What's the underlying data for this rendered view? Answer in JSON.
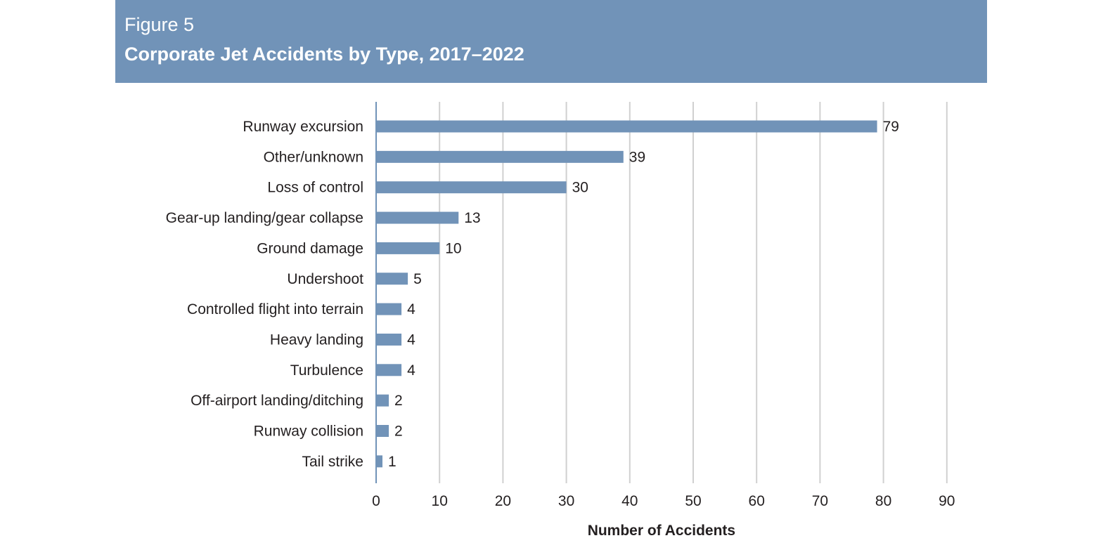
{
  "header": {
    "figure_label": "Figure 5",
    "title": "Corporate Jet Accidents by Type, 2017–2022"
  },
  "colors": {
    "header_bg": "#7193b8",
    "bar": "#7193b8",
    "gridline": "#d0d0d0",
    "axis": "#7193b8",
    "text": "#231f20"
  },
  "chart_data": {
    "type": "bar",
    "orientation": "horizontal",
    "categories": [
      "Runway excursion",
      "Other/unknown",
      "Loss of control",
      "Gear-up landing/gear collapse",
      "Ground damage",
      "Undershoot",
      "Controlled flight into terrain",
      "Heavy landing",
      "Turbulence",
      "Off-airport landing/ditching",
      "Runway collision",
      "Tail strike"
    ],
    "values": [
      79,
      39,
      30,
      13,
      10,
      5,
      4,
      4,
      4,
      2,
      2,
      1
    ],
    "xlabel": "Number of Accidents",
    "ylabel": "",
    "xlim": [
      0,
      90
    ],
    "xticks": [
      "0",
      "10",
      "20",
      "30",
      "40",
      "50",
      "60",
      "70",
      "80",
      "90"
    ],
    "grid": "vertical",
    "legend": "none",
    "data_labels": true
  }
}
